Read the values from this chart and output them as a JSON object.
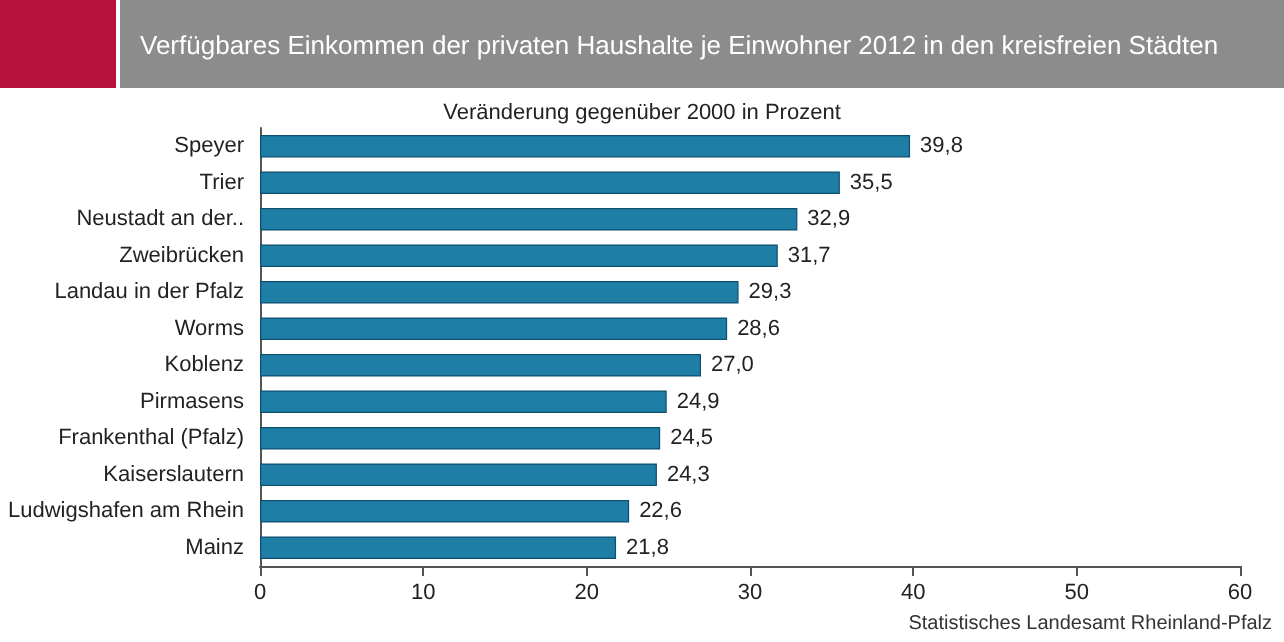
{
  "chart_data": {
    "type": "bar",
    "orientation": "horizontal",
    "title": "Verfügbares Einkommen der privaten Haushalte je Einwohner 2012 in den kreisfreien Städten",
    "subtitle": "Veränderung gegenüber 2000 in Prozent",
    "annotations": [
      "Statistisches Landesamt Rheinland-Pfalz"
    ],
    "categories": [
      "Speyer",
      "Trier",
      "Neustadt an der..",
      "Zweibrücken",
      "Landau in der Pfalz",
      "Worms",
      "Koblenz",
      "Pirmasens",
      "Frankenthal (Pfalz)",
      "Kaiserslautern",
      "Ludwigshafen am Rhein",
      "Mainz"
    ],
    "values": [
      39.8,
      35.5,
      32.9,
      31.7,
      29.3,
      28.6,
      27.0,
      24.9,
      24.5,
      24.3,
      22.6,
      21.8
    ],
    "value_labels": [
      "39,8",
      "35,5",
      "32,9",
      "31,7",
      "29,3",
      "28,6",
      "27,0",
      "24,9",
      "24,5",
      "24,3",
      "22,6",
      "21,8"
    ],
    "color": "#1f7ea6",
    "xlim": [
      0,
      60
    ],
    "xticks": [
      0,
      10,
      20,
      30,
      40,
      50,
      60
    ],
    "grid": false
  }
}
